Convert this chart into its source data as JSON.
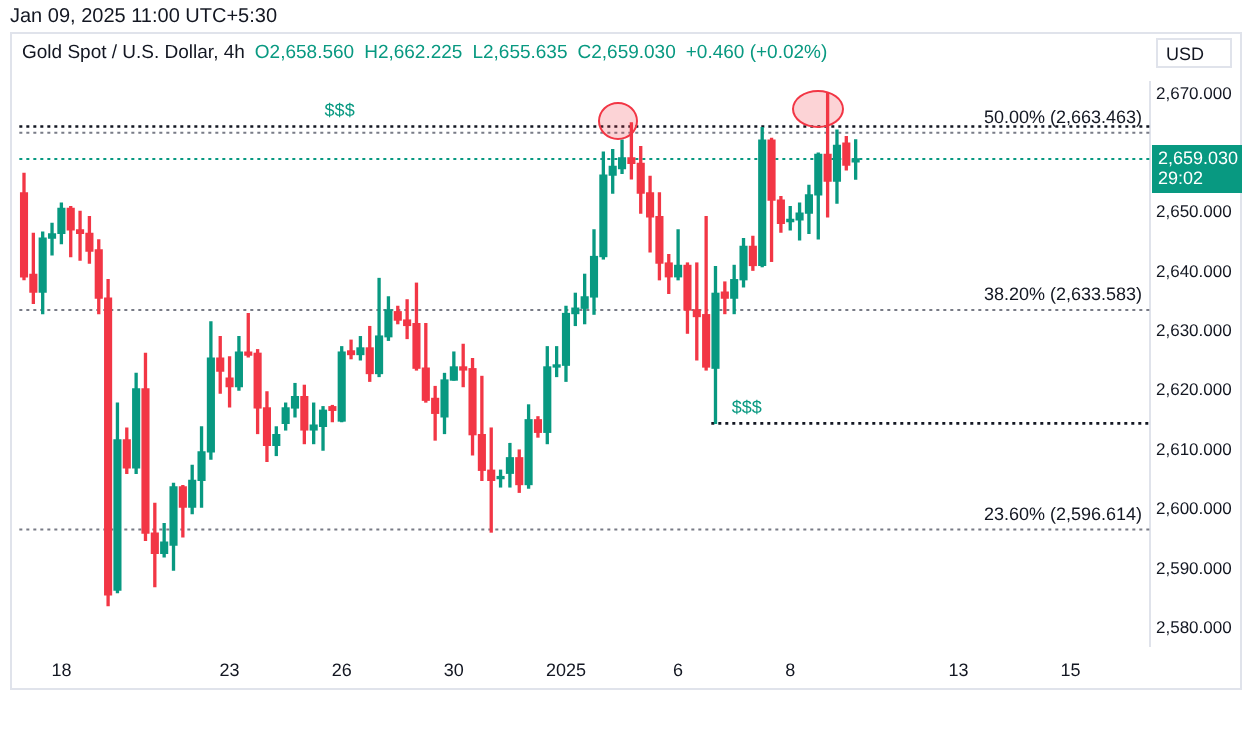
{
  "chart_data": {
    "type": "candlestick",
    "title": "Gold Spot / U.S. Dollar, 4h",
    "subtitle": "Jan 09, 2025 11:00 UTC+5:30",
    "ylabel": "USD",
    "annotations": [
      "O2,658.560",
      "H2,662.225",
      "L2,655.635",
      "C2,659.030",
      "+0.460 (+0.02%)",
      "29:02"
    ],
    "categories": [
      null,
      null,
      null,
      null,
      "18",
      null,
      null,
      null,
      null,
      null,
      null,
      null,
      null,
      null,
      null,
      null,
      null,
      null,
      null,
      null,
      null,
      null,
      "23",
      null,
      null,
      null,
      null,
      null,
      null,
      null,
      null,
      null,
      null,
      null,
      "26",
      null,
      null,
      null,
      null,
      null,
      null,
      null,
      null,
      null,
      null,
      null,
      "30",
      null,
      null,
      null,
      null,
      null,
      null,
      null,
      null,
      null,
      null,
      null,
      "2025",
      null,
      null,
      null,
      null,
      null,
      null,
      null,
      null,
      null,
      null,
      null,
      "6",
      null,
      null,
      null,
      null,
      null,
      null,
      null,
      null,
      null,
      null,
      null,
      "8",
      null,
      null,
      null,
      null,
      null,
      null,
      null,
      null,
      null,
      null,
      null,
      null,
      null,
      null,
      null,
      null,
      null,
      "13",
      null,
      null,
      null,
      null,
      null,
      null,
      null,
      null,
      null,
      null,
      null,
      "15",
      null,
      null,
      null,
      null,
      null,
      null,
      null,
      null
    ],
    "ohlc": [
      [
        2653.3,
        2656.6,
        2638.7,
        2639.2
      ],
      [
        2639.6,
        2646.5,
        2634.7,
        2636.6
      ],
      [
        2636.6,
        2646.7,
        2633.0,
        2645.7
      ],
      [
        2645.7,
        2648.2,
        2642.9,
        2646.4
      ],
      [
        2646.5,
        2651.6,
        2644.8,
        2650.7
      ],
      [
        2650.7,
        2651.0,
        2642.6,
        2647.1
      ],
      [
        2647.1,
        2650.2,
        2642.0,
        2646.5
      ],
      [
        2646.5,
        2649.3,
        2641.5,
        2643.5
      ],
      [
        2643.7,
        2645.4,
        2633.0,
        2635.6
      ],
      [
        2635.6,
        2638.7,
        2583.8,
        2585.6
      ],
      [
        2586.4,
        2617.9,
        2586.0,
        2611.7
      ],
      [
        2611.7,
        2613.7,
        2606.1,
        2607.0
      ],
      [
        2607.0,
        2622.9,
        2606.1,
        2620.3
      ],
      [
        2620.3,
        2626.3,
        2594.8,
        2596.0
      ],
      [
        2596.0,
        2601.0,
        2587.0,
        2592.6
      ],
      [
        2592.6,
        2597.6,
        2592.0,
        2594.5
      ],
      [
        2594.0,
        2604.4,
        2589.8,
        2603.8
      ],
      [
        2603.8,
        2604.0,
        2595.4,
        2600.4
      ],
      [
        2600.4,
        2607.4,
        2599.3,
        2604.9
      ],
      [
        2604.9,
        2613.9,
        2600.4,
        2609.7
      ],
      [
        2609.7,
        2631.6,
        2608.5,
        2625.5
      ],
      [
        2625.5,
        2629.1,
        2619.6,
        2623.3
      ],
      [
        2622.1,
        2625.7,
        2617.3,
        2620.7
      ],
      [
        2620.7,
        2629.1,
        2620.1,
        2626.5
      ],
      [
        2626.5,
        2633.0,
        2625.7,
        2626.0
      ],
      [
        2626.3,
        2626.9,
        2612.8,
        2617.1
      ],
      [
        2617.1,
        2619.8,
        2608.1,
        2610.8
      ],
      [
        2610.8,
        2613.9,
        2609.1,
        2612.6
      ],
      [
        2614.5,
        2617.9,
        2613.4,
        2617.1
      ],
      [
        2617.1,
        2621.2,
        2615.6,
        2619.0
      ],
      [
        2619.0,
        2620.9,
        2611.1,
        2613.4
      ],
      [
        2613.4,
        2617.9,
        2611.1,
        2614.2
      ],
      [
        2614.0,
        2617.3,
        2610.0,
        2616.7
      ],
      [
        2617.3,
        2617.5,
        2614.8,
        2616.7
      ],
      [
        2614.9,
        2627.4,
        2614.8,
        2626.5
      ],
      [
        2626.7,
        2628.5,
        2625.4,
        2626.1
      ],
      [
        2626.1,
        2629.1,
        2625.2,
        2627.2
      ],
      [
        2627.2,
        2630.8,
        2621.6,
        2622.9
      ],
      [
        2622.9,
        2638.9,
        2622.4,
        2629.2
      ],
      [
        2629.1,
        2635.8,
        2628.5,
        2633.6
      ],
      [
        2633.3,
        2634.2,
        2631.3,
        2631.9
      ],
      [
        2631.9,
        2635.3,
        2628.8,
        2631.0
      ],
      [
        2631.3,
        2638.1,
        2623.5,
        2623.8
      ],
      [
        2623.8,
        2631.3,
        2618.1,
        2618.4
      ],
      [
        2618.7,
        2620.7,
        2611.7,
        2616.2
      ],
      [
        2615.6,
        2622.9,
        2612.8,
        2621.8
      ],
      [
        2621.8,
        2626.5,
        2621.8,
        2624.0
      ],
      [
        2624.0,
        2627.8,
        2620.7,
        2623.5
      ],
      [
        2623.7,
        2625.4,
        2609.2,
        2612.6
      ],
      [
        2612.6,
        2622.4,
        2604.9,
        2606.6
      ],
      [
        2606.6,
        2613.7,
        2596.2,
        2604.9
      ],
      [
        2605.2,
        2606.6,
        2603.8,
        2605.5
      ],
      [
        2606.1,
        2611.1,
        2603.8,
        2608.7
      ],
      [
        2608.7,
        2610.0,
        2602.9,
        2604.2
      ],
      [
        2604.2,
        2617.6,
        2603.6,
        2615.1
      ],
      [
        2615.1,
        2615.6,
        2612.2,
        2613.0
      ],
      [
        2613.0,
        2627.4,
        2611.1,
        2624.0
      ],
      [
        2624.0,
        2627.4,
        2622.4,
        2624.3
      ],
      [
        2624.3,
        2634.2,
        2621.6,
        2633.0
      ],
      [
        2633.0,
        2636.4,
        2631.0,
        2633.9
      ],
      [
        2633.9,
        2639.6,
        2631.3,
        2635.8
      ],
      [
        2635.8,
        2647.1,
        2632.9,
        2642.6
      ],
      [
        2642.6,
        2660.2,
        2642.2,
        2656.3
      ],
      [
        2656.3,
        2660.6,
        2653.3,
        2657.8
      ],
      [
        2657.4,
        2662.2,
        2656.6,
        2659.2
      ],
      [
        2659.2,
        2665.1,
        2655.7,
        2658.3
      ],
      [
        2658.3,
        2661.1,
        2649.9,
        2653.3
      ],
      [
        2653.3,
        2656.1,
        2643.4,
        2649.3
      ],
      [
        2649.3,
        2653.3,
        2638.7,
        2641.5
      ],
      [
        2641.5,
        2642.9,
        2636.4,
        2639.2
      ],
      [
        2639.2,
        2647.1,
        2638.7,
        2641.1
      ],
      [
        2641.1,
        2641.5,
        2629.7,
        2633.6
      ],
      [
        2633.6,
        2641.5,
        2625.2,
        2632.5
      ],
      [
        2632.8,
        2649.3,
        2623.5,
        2624.0
      ],
      [
        2623.8,
        2640.9,
        2614.5,
        2636.4
      ],
      [
        2636.6,
        2638.3,
        2633.0,
        2635.6
      ],
      [
        2635.6,
        2641.1,
        2633.0,
        2638.7
      ],
      [
        2638.7,
        2645.6,
        2637.5,
        2644.3
      ],
      [
        2644.3,
        2646.0,
        2640.3,
        2641.1
      ],
      [
        2641.1,
        2664.3,
        2640.9,
        2662.2
      ],
      [
        2662.2,
        2662.5,
        2641.8,
        2652.1
      ],
      [
        2652.1,
        2652.7,
        2646.7,
        2648.2
      ],
      [
        2648.5,
        2651.0,
        2647.1,
        2648.8
      ],
      [
        2648.8,
        2651.6,
        2645.4,
        2649.9
      ],
      [
        2649.9,
        2654.6,
        2646.5,
        2653.0
      ],
      [
        2653.0,
        2660.0,
        2645.6,
        2659.8
      ],
      [
        2659.8,
        2670.1,
        2649.3,
        2655.3
      ],
      [
        2655.3,
        2663.9,
        2651.6,
        2661.3
      ],
      [
        2661.7,
        2662.8,
        2657.2,
        2658.0
      ],
      [
        2658.56,
        2662.225,
        2655.635,
        2659.03
      ],
      null,
      null,
      null,
      null,
      null,
      null,
      null,
      null,
      null,
      null,
      null,
      null,
      null,
      null,
      null,
      null,
      null,
      null,
      null,
      null,
      null,
      null,
      null,
      null,
      null,
      null,
      null,
      null,
      null,
      null,
      null
    ],
    "ylim": [
      2577,
      2672
    ],
    "yticks": [
      {
        "value": 2580,
        "label": "2,580.000"
      },
      {
        "value": 2590,
        "label": "2,590.000"
      },
      {
        "value": 2600,
        "label": "2,600.000"
      },
      {
        "value": 2610,
        "label": "2,610.000"
      },
      {
        "value": 2620,
        "label": "2,620.000"
      },
      {
        "value": 2630,
        "label": "2,630.000"
      },
      {
        "value": 2640,
        "label": "2,640.000"
      },
      {
        "value": 2650,
        "label": "2,650.000"
      },
      {
        "value": 2670,
        "label": "2,670.000"
      }
    ],
    "ref_lines": [
      {
        "axis": "y",
        "value": 2659.03,
        "label": "2,659.030",
        "color": "#089981",
        "line_style": "dotted"
      },
      {
        "axis": "y",
        "value": 2663.463,
        "label": "50.00% (2,663.463)",
        "color": "#787b86",
        "line_style": "dotted"
      },
      {
        "axis": "y",
        "value": 2633.583,
        "label": "38.20% (2,633.583)",
        "color": "#787b86",
        "line_style": "dotted"
      },
      {
        "axis": "y",
        "value": 2596.614,
        "label": "23.60% (2,596.614)",
        "color": "#787b86",
        "line_style": "dotted"
      },
      {
        "axis": "y",
        "value": 2664.5,
        "label": "$$$",
        "color": "#131722",
        "line_style": "dotted"
      },
      {
        "axis": "y",
        "value": 2614.5,
        "label": "$$$",
        "color": "#131722",
        "line_style": "dotted"
      }
    ]
  }
}
